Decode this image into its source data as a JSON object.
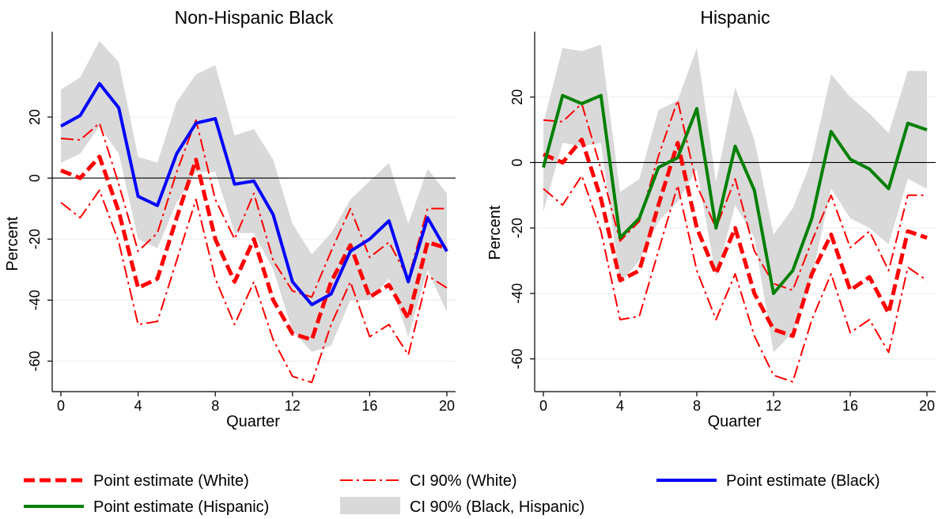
{
  "chart_data": [
    {
      "type": "line",
      "title": "Non-Hispanic Black",
      "xlabel": "Quarter",
      "ylabel": "Percent",
      "xlim": [
        0,
        20
      ],
      "ylim": [
        -70,
        48
      ],
      "xticks": [
        0,
        4,
        8,
        12,
        16,
        20
      ],
      "yticks": [
        -60,
        -40,
        -20,
        0,
        20
      ],
      "grid": true,
      "reference_line": 0,
      "x": [
        0,
        1,
        2,
        3,
        4,
        5,
        6,
        7,
        8,
        9,
        10,
        11,
        12,
        13,
        14,
        15,
        16,
        17,
        18,
        19,
        20
      ],
      "series": [
        {
          "name": "Point estimate (White)",
          "style": "thick-dash",
          "color": "#ff0000",
          "values": [
            2.5,
            0,
            7,
            -11,
            -36,
            -33,
            -13,
            6,
            -20,
            -34,
            -20,
            -40,
            -51,
            -53,
            -34,
            -22,
            -39,
            -35,
            -46,
            -21,
            -23
          ]
        },
        {
          "name": "CI 90% (White)",
          "style": "dash-dot",
          "color": "#ff0000",
          "values": [
            13,
            12.5,
            18,
            -2,
            -24,
            -18,
            2,
            19,
            -7,
            -20,
            -5,
            -27,
            -37,
            -39,
            -24,
            -10,
            -26,
            -21,
            -33,
            -10,
            -10
          ]
        },
        {
          "name": "CI 90% (White)",
          "style": "dash-dot",
          "color": "#ff0000",
          "values": [
            -8,
            -13,
            -4,
            -21,
            -48,
            -47,
            -27,
            -7,
            -33,
            -48,
            -34,
            -53,
            -65,
            -67,
            -48,
            -34,
            -52,
            -48,
            -58,
            -32,
            -36
          ]
        },
        {
          "name": "Point estimate (Black)",
          "style": "solid",
          "color": "#0000ff",
          "values": [
            17,
            20.5,
            31,
            23,
            -6,
            -9,
            8,
            18,
            19.5,
            -2,
            -1,
            -12,
            -34,
            -41.5,
            -38,
            -24,
            -20,
            -14,
            -34,
            -13,
            -24
          ]
        }
      ],
      "band": {
        "name": "CI 90% (Black, Hispanic)",
        "color": "#d9d9d9",
        "upper": [
          29,
          33,
          45,
          38,
          7,
          5,
          25,
          34,
          37,
          14,
          16,
          6,
          -15,
          -25,
          -18,
          -7,
          -1,
          5,
          -15,
          3,
          -5
        ],
        "lower": [
          5,
          8,
          17,
          8,
          -20,
          -23,
          -8,
          2,
          2,
          -18,
          -18,
          -30,
          -50,
          -57,
          -55,
          -40,
          -40,
          -33,
          -52,
          -30,
          -44
        ]
      }
    },
    {
      "type": "line",
      "title": "Hispanic",
      "xlabel": "Quarter",
      "ylabel": "Percent",
      "xlim": [
        0,
        20
      ],
      "ylim": [
        -70,
        40
      ],
      "xticks": [
        0,
        4,
        8,
        12,
        16,
        20
      ],
      "yticks": [
        -60,
        -40,
        -20,
        0,
        20
      ],
      "grid": true,
      "reference_line": 0,
      "x": [
        0,
        1,
        2,
        3,
        4,
        5,
        6,
        7,
        8,
        9,
        10,
        11,
        12,
        13,
        14,
        15,
        16,
        17,
        18,
        19,
        20
      ],
      "series": [
        {
          "name": "Point estimate (White)",
          "style": "thick-dash",
          "color": "#ff0000",
          "values": [
            2.5,
            0,
            7,
            -11,
            -36,
            -33,
            -13,
            6,
            -20,
            -34,
            -20,
            -40,
            -51,
            -53,
            -34,
            -22,
            -39,
            -35,
            -46,
            -21,
            -23
          ]
        },
        {
          "name": "CI 90% (White)",
          "style": "dash-dot",
          "color": "#ff0000",
          "values": [
            13,
            12.5,
            18,
            -2,
            -24,
            -18,
            2,
            19,
            -7,
            -20,
            -5,
            -27,
            -37,
            -39,
            -24,
            -10,
            -26,
            -21,
            -33,
            -10,
            -10
          ]
        },
        {
          "name": "CI 90% (White)",
          "style": "dash-dot",
          "color": "#ff0000",
          "values": [
            -8,
            -13,
            -4,
            -21,
            -48,
            -47,
            -27,
            -7,
            -33,
            -48,
            -34,
            -53,
            -65,
            -67,
            -48,
            -34,
            -52,
            -48,
            -58,
            -32,
            -36
          ]
        },
        {
          "name": "Point estimate (Hispanic)",
          "style": "solid",
          "color": "#008000",
          "values": [
            -1.5,
            20.5,
            18,
            20.5,
            -23,
            -17,
            -1.5,
            1.5,
            16.5,
            -20,
            5,
            -8.5,
            -40,
            -33,
            -17,
            9.5,
            1,
            -2,
            -8,
            12,
            10
          ]
        }
      ],
      "band": {
        "name": "CI 90% (Black, Hispanic)",
        "color": "#d9d9d9",
        "upper": [
          12,
          35,
          34,
          36,
          -9,
          -5,
          16,
          19,
          35,
          -6,
          23,
          7,
          -22,
          -14,
          1,
          27,
          20,
          15,
          9,
          28,
          28
        ],
        "lower": [
          -15,
          6,
          5,
          6,
          -37,
          -30,
          -18,
          -12,
          -2,
          -35,
          -13,
          -23,
          -58,
          -52,
          -35,
          -8,
          -17,
          -20,
          -25,
          -5,
          -8
        ]
      }
    }
  ],
  "legend": {
    "items": [
      {
        "label": "Point estimate (White)",
        "style": "thick-dash",
        "color": "#ff0000"
      },
      {
        "label": "CI 90% (White)",
        "style": "dash-dot",
        "color": "#ff0000"
      },
      {
        "label": "Point estimate (Black)",
        "style": "solid",
        "color": "#0000ff"
      },
      {
        "label": "Point estimate (Hispanic)",
        "style": "solid",
        "color": "#008000"
      },
      {
        "label": "CI 90% (Black, Hispanic)",
        "style": "band",
        "color": "#d9d9d9"
      }
    ]
  }
}
